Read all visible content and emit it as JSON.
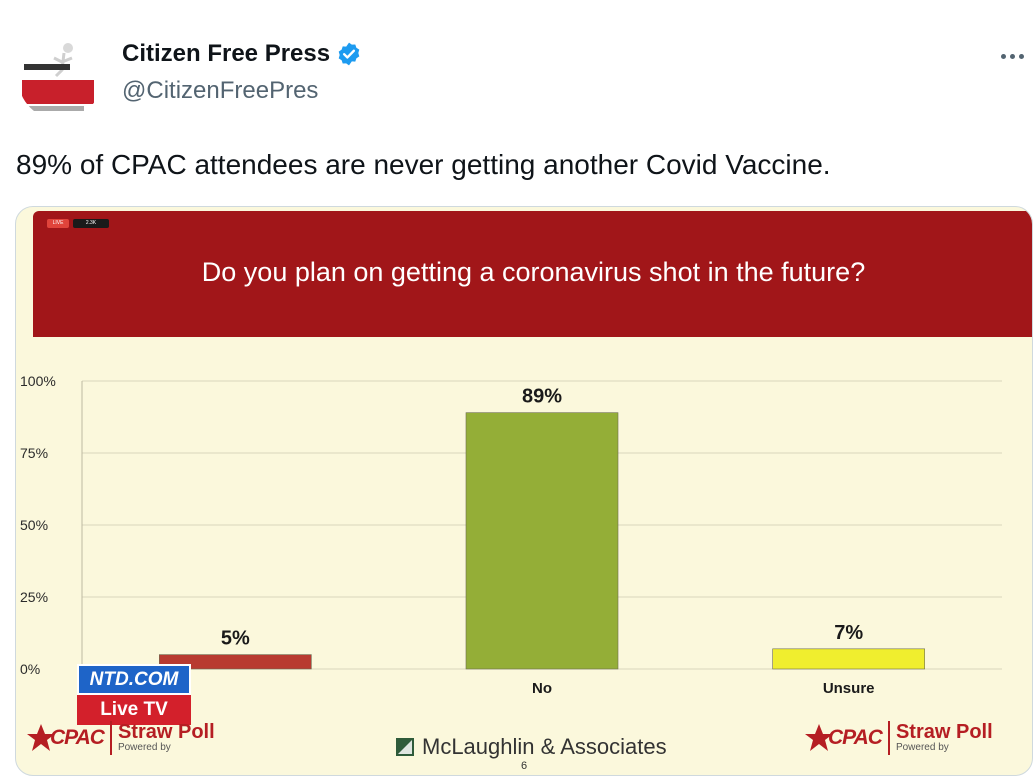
{
  "tweet": {
    "display_name": "Citizen Free Press",
    "handle": "@CitizenFreePres",
    "text": "89% of CPAC attendees are never getting another Covid Vaccine.",
    "verified": true,
    "icons": [
      "avatar",
      "verified-badge-icon",
      "more-options-icon"
    ],
    "colors": {
      "text": "#0f1419",
      "muted": "#536471",
      "verified": "#1d9bf0"
    }
  },
  "media": {
    "live_chip": "LIVE",
    "viewer_chip": "2.3K",
    "question": "Do you plan on getting a coronavirus shot in the future?",
    "ntd_top": "NTD.COM",
    "ntd_bottom": "Live TV",
    "cpac_left": "CPAC",
    "cpac_right": "CPAC",
    "straw_poll": "Straw Poll",
    "powered_by": "Powered by",
    "mclaughlin": "McLaughlin & Associates",
    "slide_number": "6",
    "colors": {
      "banner": "#a11619",
      "background": "#fbf8dc",
      "cpac_red": "#b51e23"
    }
  },
  "chart_data": {
    "type": "bar",
    "title": "Do you plan on getting a coronavirus shot in the future?",
    "categories": [
      "",
      "No",
      "Unsure"
    ],
    "values": [
      5,
      89,
      7
    ],
    "data_labels": [
      "5%",
      "89%",
      "7%"
    ],
    "colors": [
      "#b83a30",
      "#94ae37",
      "#f0ee2e"
    ],
    "yticks": [
      "0%",
      "25%",
      "50%",
      "75%",
      "100%"
    ],
    "ylim": [
      0,
      100
    ],
    "grid": true,
    "xlabel": "",
    "ylabel": ""
  }
}
